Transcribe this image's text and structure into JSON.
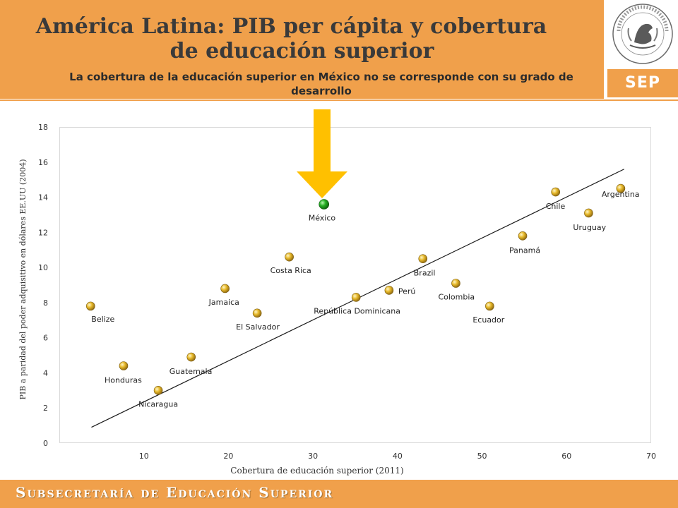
{
  "header": {
    "title_line1": "América Latina: PIB per cápita y cobertura",
    "title_line2": "de educación superior",
    "subtitle": "La cobertura de la educación superior en México no se corresponde con su grado de desarrollo",
    "seal_text": "ESTADOS UNIDOS MEXICANOS",
    "logo_text": "SEP"
  },
  "footer": {
    "text": "Subsecretaría de Educación Superior"
  },
  "colors": {
    "banner": "#f0a04b",
    "arrow": "#ffc000",
    "point_gold": "#d4a017",
    "point_highlight": "#1fa21f",
    "trend": "#1a1a1a"
  },
  "chart_data": {
    "type": "scatter",
    "title": "América Latina: PIB per cápita y cobertura de educación superior",
    "xlabel": "Cobertura de educación superior (2011)",
    "ylabel": "PIB a paridad del poder adquisitivo en dólares EE.UU (2004)",
    "xlim": [
      0,
      70
    ],
    "ylim": [
      0,
      18
    ],
    "x_ticks": [
      10,
      20,
      30,
      40,
      50,
      60,
      70
    ],
    "y_ticks": [
      0,
      2,
      4,
      6,
      8,
      10,
      12,
      14,
      16,
      18
    ],
    "grid": false,
    "points": [
      {
        "label": "Belize",
        "x": 3.7,
        "y": 7.8
      },
      {
        "label": "Honduras",
        "x": 7.6,
        "y": 4.4
      },
      {
        "label": "Nicaragua",
        "x": 11.7,
        "y": 3.0
      },
      {
        "label": "Guatemala",
        "x": 15.6,
        "y": 4.9
      },
      {
        "label": "Jamaica",
        "x": 19.6,
        "y": 8.8
      },
      {
        "label": "El Salvador",
        "x": 23.4,
        "y": 7.4
      },
      {
        "label": "Costa Rica",
        "x": 27.2,
        "y": 10.6
      },
      {
        "label": "México",
        "x": 31.3,
        "y": 13.6,
        "highlight": true
      },
      {
        "label": "República Dominicana",
        "x": 35.1,
        "y": 8.3
      },
      {
        "label": "Perú",
        "x": 39.0,
        "y": 8.7
      },
      {
        "label": "Brazil",
        "x": 43.0,
        "y": 10.5
      },
      {
        "label": "Colombia",
        "x": 46.9,
        "y": 9.1
      },
      {
        "label": "Ecuador",
        "x": 50.9,
        "y": 7.8
      },
      {
        "label": "Panamá",
        "x": 54.8,
        "y": 11.8
      },
      {
        "label": "Chile",
        "x": 58.7,
        "y": 14.3
      },
      {
        "label": "Uruguay",
        "x": 62.6,
        "y": 13.1
      },
      {
        "label": "Argentina",
        "x": 66.4,
        "y": 14.5
      }
    ],
    "trendline": {
      "x": [
        3.8,
        66.8
      ],
      "y": [
        0.9,
        15.6
      ]
    }
  }
}
